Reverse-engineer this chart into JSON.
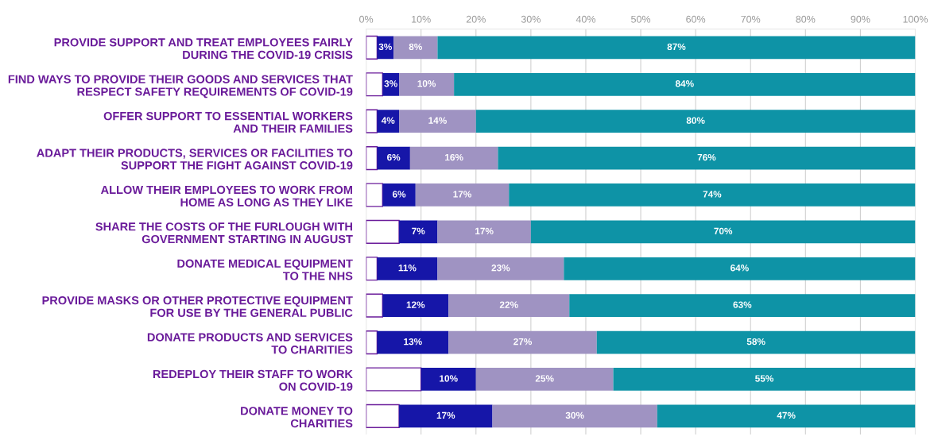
{
  "chart_data": {
    "type": "bar",
    "orientation": "horizontal",
    "stacked": true,
    "categories": [
      "PROVIDE SUPPORT AND TREAT EMPLOYEES FAIRLY\nDURING THE COVID-19 CRISIS",
      "FIND WAYS TO PROVIDE THEIR GOODS AND SERVICES THAT\nRESPECT SAFETY REQUIREMENTS OF COVID-19",
      "OFFER SUPPORT TO ESSENTIAL WORKERS\nAND THEIR FAMILIES",
      "ADAPT THEIR PRODUCTS, SERVICES OR FACILITIES TO\nSUPPORT THE FIGHT AGAINST COVID-19",
      "ALLOW THEIR EMPLOYEES TO WORK FROM\nHOME AS LONG AS THEY LIKE",
      "SHARE THE COSTS OF THE FURLOUGH WITH\nGOVERNMENT STARTING IN AUGUST",
      "DONATE MEDICAL EQUIPMENT\nTO THE NHS",
      "PROVIDE MASKS OR OTHER PROTECTIVE EQUIPMENT\nFOR USE BY THE GENERAL PUBLIC",
      "DONATE PRODUCTS AND SERVICES\nTO CHARITIES",
      "REDEPLOY THEIR STAFF TO WORK\nON COVID-19",
      "DONATE MONEY TO\nCHARITIES"
    ],
    "series": [
      {
        "color": "#ffffff",
        "values": [
          2,
          3,
          2,
          2,
          3,
          6,
          2,
          3,
          2,
          10,
          6
        ]
      },
      {
        "color": "#1616a8",
        "values": [
          3,
          3,
          4,
          6,
          6,
          7,
          11,
          12,
          13,
          10,
          17
        ],
        "value_labels": [
          "3%",
          "3%",
          "4%",
          "6%",
          "6%",
          "7%",
          "11%",
          "12%",
          "13%",
          "10%",
          "17%"
        ]
      },
      {
        "color": "#9f93c2",
        "values": [
          8,
          10,
          14,
          16,
          17,
          17,
          23,
          22,
          27,
          25,
          30
        ],
        "value_labels": [
          "8%",
          "10%",
          "14%",
          "16%",
          "17%",
          "17%",
          "23%",
          "22%",
          "27%",
          "25%",
          "30%"
        ]
      },
      {
        "color": "#0e93a6",
        "values": [
          87,
          84,
          80,
          76,
          74,
          70,
          64,
          63,
          58,
          55,
          47
        ],
        "value_labels": [
          "87%",
          "84%",
          "80%",
          "76%",
          "74%",
          "70%",
          "64%",
          "63%",
          "58%",
          "55%",
          "47%"
        ]
      }
    ],
    "xlim": [
      0,
      100
    ],
    "xticks": [
      {
        "value": 0,
        "label": "0%"
      },
      {
        "value": 10,
        "label": "10%"
      },
      {
        "value": 20,
        "label": "20%"
      },
      {
        "value": 30,
        "label": "30%"
      },
      {
        "value": 40,
        "label": "40%"
      },
      {
        "value": 50,
        "label": "50%"
      },
      {
        "value": 60,
        "label": "60%"
      },
      {
        "value": 70,
        "label": "70%"
      },
      {
        "value": 80,
        "label": "80%"
      },
      {
        "value": 90,
        "label": "90%"
      },
      {
        "value": 100,
        "label": "100%"
      }
    ],
    "grid": "x",
    "legend": false
  }
}
